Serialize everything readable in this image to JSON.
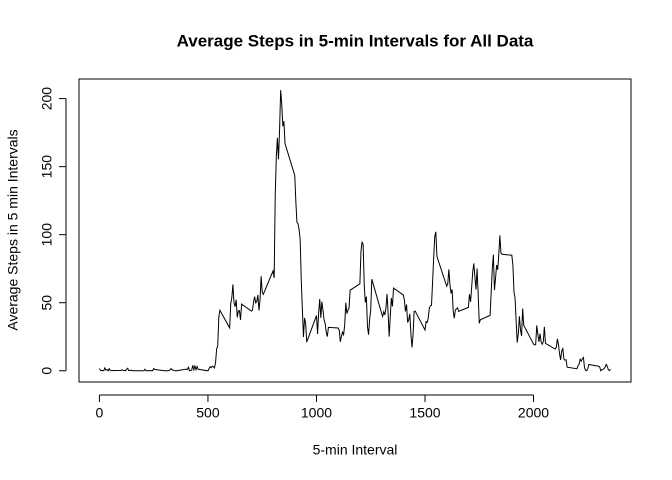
{
  "chart_data": {
    "type": "line",
    "title": "Average Steps in 5-min Intervals for All Data",
    "xlabel": "5-min Interval",
    "ylabel": "Average Steps in 5 min Intervals",
    "color": "#000000",
    "xlim": [
      -94.2,
      2449.2
    ],
    "ylim": [
      -8.25,
      214.4
    ],
    "xticks": [
      0,
      500,
      1000,
      1500,
      2000
    ],
    "yticks": [
      0,
      50,
      100,
      150,
      200
    ],
    "x": [
      0,
      5,
      10,
      15,
      20,
      25,
      30,
      35,
      40,
      45,
      50,
      55,
      100,
      105,
      110,
      115,
      120,
      125,
      130,
      135,
      140,
      145,
      150,
      155,
      200,
      205,
      210,
      215,
      220,
      225,
      230,
      235,
      240,
      245,
      250,
      255,
      300,
      305,
      310,
      315,
      320,
      325,
      330,
      335,
      340,
      345,
      350,
      355,
      400,
      405,
      410,
      415,
      420,
      425,
      430,
      435,
      440,
      445,
      450,
      455,
      500,
      505,
      510,
      515,
      520,
      525,
      530,
      535,
      540,
      545,
      550,
      555,
      600,
      605,
      610,
      615,
      620,
      625,
      630,
      635,
      640,
      645,
      650,
      655,
      700,
      705,
      710,
      715,
      720,
      725,
      730,
      735,
      740,
      745,
      750,
      755,
      800,
      805,
      810,
      815,
      820,
      825,
      830,
      835,
      840,
      845,
      850,
      855,
      900,
      905,
      910,
      915,
      920,
      925,
      930,
      935,
      940,
      945,
      950,
      955,
      1000,
      1005,
      1010,
      1015,
      1020,
      1025,
      1030,
      1035,
      1040,
      1045,
      1050,
      1055,
      1100,
      1105,
      1110,
      1115,
      1120,
      1125,
      1130,
      1135,
      1140,
      1145,
      1150,
      1155,
      1200,
      1205,
      1210,
      1215,
      1220,
      1225,
      1230,
      1235,
      1240,
      1245,
      1250,
      1255,
      1300,
      1305,
      1310,
      1315,
      1320,
      1325,
      1330,
      1335,
      1340,
      1345,
      1350,
      1355,
      1400,
      1405,
      1410,
      1415,
      1420,
      1425,
      1430,
      1435,
      1440,
      1445,
      1450,
      1455,
      1500,
      1505,
      1510,
      1515,
      1520,
      1525,
      1530,
      1535,
      1540,
      1545,
      1550,
      1555,
      1600,
      1605,
      1610,
      1615,
      1620,
      1625,
      1630,
      1635,
      1640,
      1645,
      1650,
      1655,
      1700,
      1705,
      1710,
      1715,
      1720,
      1725,
      1730,
      1735,
      1740,
      1745,
      1750,
      1755,
      1800,
      1805,
      1810,
      1815,
      1820,
      1825,
      1830,
      1835,
      1840,
      1845,
      1850,
      1855,
      1900,
      1905,
      1910,
      1915,
      1920,
      1925,
      1930,
      1935,
      1940,
      1945,
      1950,
      1955,
      2000,
      2005,
      2010,
      2015,
      2020,
      2025,
      2030,
      2035,
      2040,
      2045,
      2050,
      2055,
      2100,
      2105,
      2110,
      2115,
      2120,
      2125,
      2130,
      2135,
      2140,
      2145,
      2150,
      2155,
      2200,
      2205,
      2210,
      2215,
      2220,
      2225,
      2230,
      2235,
      2240,
      2245,
      2250,
      2255,
      2300,
      2305,
      2310,
      2315,
      2320,
      2325,
      2330,
      2335,
      2340,
      2345,
      2350,
      2355
    ],
    "values": [
      1.7,
      0.3,
      0.1,
      0.2,
      0.1,
      2.1,
      0.5,
      0.9,
      0,
      1.5,
      0.3,
      0.1,
      0.3,
      0.7,
      0.2,
      0.3,
      0,
      1.1,
      1.8,
      0.2,
      0.2,
      0.4,
      0.3,
      0,
      0,
      0,
      1.1,
      0,
      0,
      0.1,
      0,
      0.2,
      0,
      0,
      1.6,
      0.9,
      0,
      0,
      0,
      0,
      0.2,
      0.6,
      1.6,
      0.6,
      0.5,
      0.1,
      0,
      0,
      1.2,
      0.9,
      2.6,
      0,
      0.3,
      0.4,
      4.1,
      0.7,
      3.5,
      0.8,
      3.1,
      1.1,
      0,
      1.6,
      3,
      2.2,
      3.3,
      3,
      2.1,
      6.1,
      16,
      18.3,
      39.5,
      44.5,
      31.5,
      49.3,
      53.8,
      63.5,
      50,
      47.1,
      52.2,
      39.3,
      44,
      44.2,
      37.4,
      49,
      43.8,
      44.4,
      50.5,
      54.5,
      49.9,
      51,
      55.7,
      44.3,
      52.3,
      69.5,
      57.8,
      56.2,
      73.4,
      68.2,
      129.4,
      157.5,
      171.2,
      155.4,
      177.3,
      206.2,
      195.9,
      179.6,
      183.4,
      167,
      143.5,
      124,
      109.1,
      108.1,
      103.7,
      96,
      66.2,
      45.2,
      24.8,
      38.8,
      35,
      21.1,
      40.6,
      27,
      42.4,
      52.7,
      38.9,
      50.8,
      44.3,
      37.4,
      34.7,
      28.3,
      25.1,
      31.9,
      31.4,
      29.7,
      21.3,
      25.5,
      28.4,
      26.5,
      33.4,
      50,
      42,
      44.6,
      46,
      59.2,
      63.9,
      87.7,
      94.8,
      92.8,
      63.4,
      50.2,
      54.5,
      32.4,
      26.5,
      37.7,
      45.1,
      67.3,
      42.3,
      39.9,
      43.3,
      41,
      46.2,
      56.4,
      42.8,
      25.1,
      40,
      53.5,
      47.3,
      60.8,
      55.7,
      52,
      43.6,
      48.7,
      35.5,
      37.5,
      41.8,
      27.5,
      17.1,
      26.1,
      43.6,
      43.8,
      30,
      36.1,
      35.5,
      38.8,
      46,
      47.8,
      48.1,
      65.3,
      82.9,
      98.7,
      102.1,
      84,
      62.1,
      64.1,
      74.5,
      63.2,
      56.9,
      59.8,
      43.9,
      38.6,
      44.7,
      45.5,
      46.2,
      43.7,
      46.6,
      56.3,
      50.7,
      61.2,
      72.7,
      78.9,
      68.9,
      59.7,
      75.1,
      56.5,
      34.8,
      37.5,
      40.7,
      58,
      74.7,
      85.3,
      59.3,
      67.8,
      77.7,
      74.2,
      85.3,
      99.5,
      86.6,
      85.6,
      84.9,
      77.8,
      58,
      53.4,
      36.3,
      20.7,
      27.4,
      40,
      30.2,
      25.5,
      45.7,
      33.5,
      19.6,
      19,
      19.3,
      33.3,
      26.8,
      21.2,
      27.3,
      21.3,
      19.5,
      21.3,
      32.3,
      20.2,
      15.9,
      17.2,
      23.5,
      19.2,
      12.5,
      8,
      14.7,
      16.3,
      8.7,
      7.8,
      8.1,
      2.6,
      1.5,
      3.7,
      4.8,
      8.5,
      7.1,
      8.7,
      9.8,
      2.2,
      0.3,
      0.1,
      1.6,
      4.6,
      3.3,
      2.8,
      0,
      0.8,
      1,
      1.6,
      2.6,
      4.7,
      3.3,
      0.6,
      0.2,
      1.1
    ]
  }
}
